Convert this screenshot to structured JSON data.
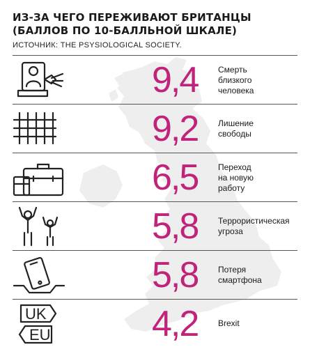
{
  "header": {
    "title": "ИЗ-ЗА ЧЕГО ПЕРЕЖИВАЮТ БРИТАНЦЫ (БАЛЛОВ ПО 10-БАЛЛЬНОЙ ШКАЛЕ)",
    "source": "ИСТОЧНИК: THE PSYSIOLOGICAL SOCIETY."
  },
  "colors": {
    "accent": "#c0237a",
    "map": "#eeeeee",
    "rules": "#555555",
    "text": "#1a1a1a"
  },
  "rows": [
    {
      "icon": "funeral-portrait-icon",
      "value": "9,4",
      "label": "Смерть\nблизкого\nчеловека"
    },
    {
      "icon": "prison-bars-icon",
      "value": "9,2",
      "label": "Лишение\nсвободы"
    },
    {
      "icon": "briefcases-icon",
      "value": "6,5",
      "label": "Переход\nна новую\nработу"
    },
    {
      "icon": "hands-up-people-icon",
      "value": "5,8",
      "label": "Террористическая\nугроза"
    },
    {
      "icon": "smartphone-falling-icon",
      "value": "5,8",
      "label": "Потеря\nсмартфона"
    },
    {
      "icon": "uk-eu-signs-icon",
      "value": "4,2",
      "label": "Brexit"
    }
  ],
  "icon_text": {
    "uk": "UK",
    "eu": "EU"
  },
  "chart_data": {
    "type": "bar",
    "title": "ИЗ-ЗА ЧЕГО ПЕРЕЖИВАЮТ БРИТАНЦЫ (БАЛЛОВ ПО 10-БАЛЛЬНОЙ ШКАЛЕ)",
    "categories": [
      "Смерть близкого человека",
      "Лишение свободы",
      "Переход на новую работу",
      "Террористическая угроза",
      "Потеря смартфона",
      "Brexit"
    ],
    "values": [
      9.4,
      9.2,
      6.5,
      5.8,
      5.8,
      4.2
    ],
    "ylim": [
      0,
      10
    ]
  }
}
